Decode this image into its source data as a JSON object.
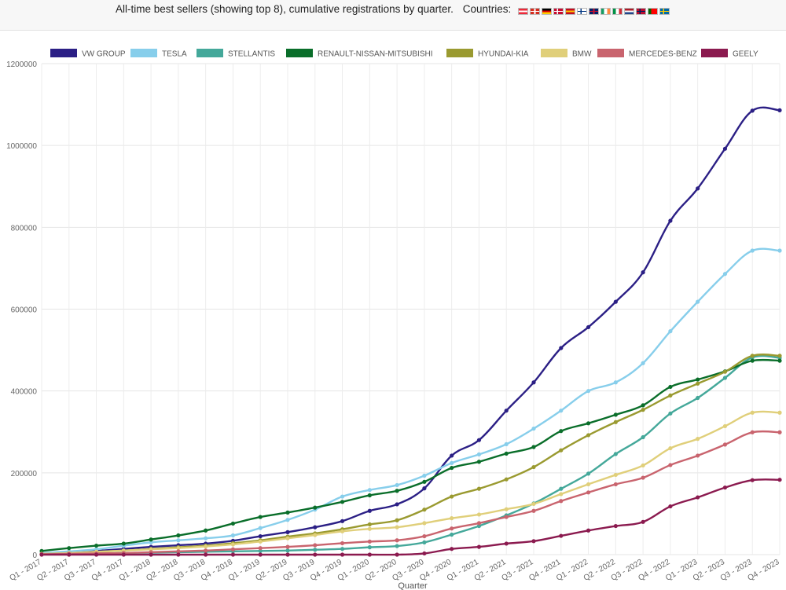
{
  "header": {
    "title": "All-time best sellers (showing top 8), cumulative registrations by quarter.",
    "countries_label": "Countries:",
    "flags": [
      {
        "name": "austria-flag",
        "colors": [
          "#ed2939",
          "#ffffff",
          "#ed2939"
        ],
        "dir": "h"
      },
      {
        "name": "switzerland-flag",
        "colors": [
          "#d52b1e",
          "#ffffff",
          "#d52b1e"
        ],
        "dir": "cross"
      },
      {
        "name": "germany-flag",
        "colors": [
          "#000000",
          "#dd0000",
          "#ffce00"
        ],
        "dir": "h"
      },
      {
        "name": "denmark-flag",
        "colors": [
          "#c60c30",
          "#ffffff",
          "#c60c30"
        ],
        "dir": "nordic"
      },
      {
        "name": "spain-flag",
        "colors": [
          "#c60b1e",
          "#ffc400",
          "#c60b1e"
        ],
        "dir": "h"
      },
      {
        "name": "finland-flag",
        "colors": [
          "#ffffff",
          "#003580",
          "#ffffff"
        ],
        "dir": "nordic"
      },
      {
        "name": "uk-flag",
        "colors": [
          "#012169",
          "#c8102e",
          "#ffffff"
        ],
        "dir": "cross"
      },
      {
        "name": "ireland-flag",
        "colors": [
          "#169b62",
          "#ffffff",
          "#ff883e"
        ],
        "dir": "v"
      },
      {
        "name": "italy-flag",
        "colors": [
          "#009246",
          "#ffffff",
          "#ce2b37"
        ],
        "dir": "v"
      },
      {
        "name": "netherlands-flag",
        "colors": [
          "#ae1c28",
          "#ffffff",
          "#21468b"
        ],
        "dir": "h"
      },
      {
        "name": "norway-flag",
        "colors": [
          "#ba0c2f",
          "#00205b",
          "#ba0c2f"
        ],
        "dir": "nordic"
      },
      {
        "name": "portugal-flag",
        "colors": [
          "#006600",
          "#ff0000",
          "#ff0000"
        ],
        "dir": "v"
      },
      {
        "name": "sweden-flag",
        "colors": [
          "#006aa7",
          "#fecc00",
          "#006aa7"
        ],
        "dir": "nordic"
      }
    ]
  },
  "chart_data": {
    "type": "line",
    "title": "",
    "xlabel": "Quarter",
    "ylabel": "",
    "ylim": [
      0,
      1200000
    ],
    "yticks": [
      0,
      200000,
      400000,
      600000,
      800000,
      1000000,
      1200000
    ],
    "grid": true,
    "legend_position": "top",
    "x": [
      "Q1 - 2017",
      "Q2 - 2017",
      "Q3 - 2017",
      "Q4 - 2017",
      "Q1 - 2018",
      "Q2 - 2018",
      "Q3 - 2018",
      "Q4 - 2018",
      "Q1 - 2019",
      "Q2 - 2019",
      "Q3 - 2019",
      "Q4 - 2019",
      "Q1 - 2020",
      "Q2 - 2020",
      "Q3 - 2020",
      "Q4 - 2020",
      "Q1 - 2021",
      "Q2 - 2021",
      "Q3 - 2021",
      "Q4 - 2021",
      "Q1 - 2022",
      "Q2 - 2022",
      "Q3 - 2022",
      "Q4 - 2022",
      "Q1 - 2023",
      "Q2 - 2023",
      "Q3 - 2023",
      "Q4 - 2023"
    ],
    "series": [
      {
        "name": "VW GROUP",
        "color": "#2b1f85",
        "values": [
          2000,
          5000,
          9000,
          14000,
          19000,
          23000,
          27000,
          34000,
          45000,
          55000,
          67000,
          82000,
          107000,
          123000,
          162000,
          242000,
          280000,
          352000,
          421000,
          505000,
          556000,
          618000,
          690000,
          816000,
          895000,
          992000,
          1085000,
          1086000
        ]
      },
      {
        "name": "TESLA",
        "color": "#87ceeb",
        "values": [
          4000,
          8000,
          13000,
          22000,
          30000,
          35000,
          40000,
          47000,
          65000,
          85000,
          110000,
          142000,
          158000,
          170000,
          193000,
          224000,
          245000,
          270000,
          308000,
          352000,
          400000,
          421000,
          468000,
          546000,
          618000,
          686000,
          743000,
          743000
        ]
      },
      {
        "name": "STELLANTIS",
        "color": "#44a89a",
        "values": [
          1000,
          2000,
          3000,
          4000,
          5000,
          6000,
          7000,
          8000,
          9000,
          10000,
          12000,
          14000,
          18000,
          21000,
          30000,
          49000,
          70000,
          96000,
          125000,
          161000,
          198000,
          246000,
          287000,
          345000,
          383000,
          432000,
          482000,
          481000
        ]
      },
      {
        "name": "RENAULT-NISSAN-MITSUBISHI",
        "color": "#0a6e2a",
        "values": [
          9000,
          16000,
          22000,
          27000,
          37000,
          47000,
          59000,
          76000,
          92000,
          103000,
          115000,
          129000,
          145000,
          156000,
          178000,
          212000,
          227000,
          247000,
          263000,
          302000,
          321000,
          342000,
          365000,
          410000,
          428000,
          448000,
          474000,
          474000
        ]
      },
      {
        "name": "HYUNDAI-KIA",
        "color": "#9a9a30",
        "values": [
          1500,
          4000,
          7000,
          10000,
          14000,
          18000,
          22000,
          28000,
          35000,
          44000,
          52000,
          62000,
          74000,
          84000,
          110000,
          142000,
          161000,
          184000,
          214000,
          255000,
          292000,
          324000,
          354000,
          389000,
          418000,
          447000,
          486000,
          486000
        ]
      },
      {
        "name": "BMW",
        "color": "#e0cf7a",
        "values": [
          2000,
          4000,
          7000,
          10000,
          13000,
          16000,
          20000,
          25000,
          32000,
          40000,
          48000,
          57000,
          63000,
          67000,
          77000,
          89000,
          98000,
          111000,
          124000,
          148000,
          172000,
          195000,
          218000,
          260000,
          283000,
          314000,
          347000,
          347000
        ]
      },
      {
        "name": "MERCEDES-BENZ",
        "color": "#c9646e",
        "values": [
          1000,
          2000,
          3000,
          4000,
          6000,
          8000,
          10000,
          13000,
          16000,
          19000,
          23000,
          28000,
          32000,
          35000,
          45000,
          64000,
          77000,
          92000,
          107000,
          131000,
          152000,
          172000,
          188000,
          219000,
          242000,
          269000,
          299000,
          299000
        ]
      },
      {
        "name": "GEELY",
        "color": "#8b1a4f",
        "values": [
          0,
          0,
          0,
          0,
          0,
          0,
          0,
          0,
          0,
          0,
          0,
          0,
          0,
          0,
          3000,
          14000,
          19000,
          27000,
          33000,
          46000,
          59000,
          70000,
          80000,
          118000,
          140000,
          164000,
          182000,
          183000
        ]
      }
    ]
  }
}
